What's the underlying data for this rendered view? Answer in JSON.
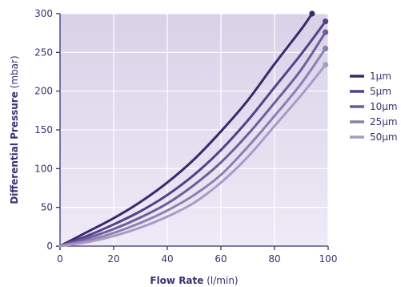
{
  "chart_data": {
    "type": "line",
    "title": "",
    "xlabel": {
      "bold": "Flow Rate",
      "unit": "(l/min)"
    },
    "ylabel": {
      "bold": "Differential Pressure",
      "unit": "(mbar)"
    },
    "xlim": [
      0,
      100
    ],
    "ylim": [
      0,
      300
    ],
    "x_ticks": [
      0,
      20,
      40,
      60,
      80,
      100
    ],
    "y_ticks": [
      0,
      50,
      100,
      150,
      200,
      250,
      300
    ],
    "grid": true,
    "legend_position": "right",
    "colors": {
      "plot_bg_top": "#d8d2e8",
      "plot_bg_bottom": "#eeeaf6",
      "grid": "#ffffff",
      "axis": "#3f2f6f",
      "text": "#3f2f6f"
    },
    "series": [
      {
        "name": "1µm",
        "color": "#3a2a6b",
        "points": [
          [
            0,
            0
          ],
          [
            10,
            18
          ],
          [
            20,
            36
          ],
          [
            30,
            57
          ],
          [
            40,
            82
          ],
          [
            50,
            112
          ],
          [
            60,
            148
          ],
          [
            70,
            188
          ],
          [
            80,
            235
          ],
          [
            90,
            280
          ],
          [
            94,
            300
          ]
        ]
      },
      {
        "name": "5µm",
        "color": "#54418a",
        "points": [
          [
            0,
            0
          ],
          [
            10,
            13
          ],
          [
            20,
            28
          ],
          [
            30,
            45
          ],
          [
            40,
            66
          ],
          [
            50,
            92
          ],
          [
            60,
            124
          ],
          [
            70,
            162
          ],
          [
            80,
            205
          ],
          [
            90,
            248
          ],
          [
            99,
            290
          ]
        ]
      },
      {
        "name": "10µm",
        "color": "#6e5d9c",
        "points": [
          [
            0,
            0
          ],
          [
            10,
            10
          ],
          [
            20,
            22
          ],
          [
            30,
            37
          ],
          [
            40,
            55
          ],
          [
            50,
            79
          ],
          [
            60,
            108
          ],
          [
            70,
            144
          ],
          [
            80,
            185
          ],
          [
            90,
            228
          ],
          [
            99,
            276
          ]
        ]
      },
      {
        "name": "25µm",
        "color": "#8c7fb2",
        "points": [
          [
            0,
            0
          ],
          [
            10,
            7
          ],
          [
            20,
            17
          ],
          [
            30,
            30
          ],
          [
            40,
            46
          ],
          [
            50,
            66
          ],
          [
            60,
            92
          ],
          [
            70,
            128
          ],
          [
            80,
            168
          ],
          [
            90,
            210
          ],
          [
            99,
            255
          ]
        ]
      },
      {
        "name": "50µm",
        "color": "#a79cc6",
        "points": [
          [
            0,
            0
          ],
          [
            10,
            5
          ],
          [
            20,
            13
          ],
          [
            30,
            24
          ],
          [
            40,
            38
          ],
          [
            50,
            56
          ],
          [
            60,
            82
          ],
          [
            70,
            115
          ],
          [
            80,
            155
          ],
          [
            90,
            195
          ],
          [
            99,
            234
          ]
        ]
      }
    ]
  }
}
